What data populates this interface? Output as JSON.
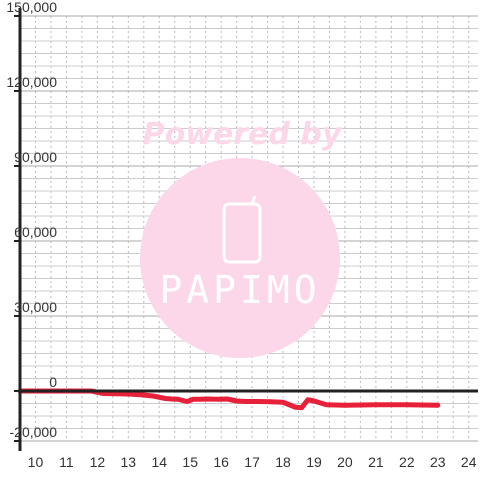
{
  "watermark": {
    "powered_by": "Powered by",
    "logo_text": "PAPIMO",
    "color": "#fcd7ea"
  },
  "colors": {
    "series": "#e8213a",
    "axis": "#222222",
    "grid": "#bbbbbb"
  },
  "chart_data": {
    "type": "line",
    "title": "",
    "xlabel": "",
    "ylabel": "",
    "xlim": [
      9.5,
      24.3
    ],
    "ylim": [
      -20000,
      150000
    ],
    "x_ticks": [
      10,
      11,
      12,
      13,
      14,
      15,
      16,
      17,
      18,
      19,
      20,
      21,
      22,
      23,
      24
    ],
    "x_tick_labels": [
      "10",
      "11",
      "12",
      "13",
      "14",
      "15",
      "16",
      "17",
      "18",
      "19",
      "20",
      "21",
      "22",
      "23",
      "24"
    ],
    "y_ticks": [
      150000,
      120000,
      90000,
      60000,
      30000,
      0,
      -20000
    ],
    "y_tick_labels": [
      "150,000",
      "120,000",
      "90,000",
      "60,000",
      "30,000",
      "0",
      "-20,000"
    ],
    "grid": true,
    "series": [
      {
        "x": [
          9.5,
          10.0,
          11.0,
          11.8,
          12.2,
          12.6,
          13.0,
          13.4,
          13.8,
          14.2,
          14.4,
          14.6,
          14.9,
          15.1,
          15.3,
          15.6,
          15.9,
          16.2,
          16.5,
          16.8,
          17.2,
          17.6,
          18.0,
          18.2,
          18.4,
          18.6,
          18.8,
          19.0,
          19.4,
          20.0,
          21.0,
          22.0,
          23.0
        ],
        "y": [
          0,
          0,
          0,
          0,
          -1000,
          -1100,
          -1200,
          -1500,
          -2000,
          -3000,
          -3200,
          -3300,
          -4200,
          -3300,
          -3300,
          -3200,
          -3300,
          -3200,
          -4000,
          -4200,
          -4200,
          -4300,
          -4500,
          -5500,
          -6500,
          -6700,
          -3500,
          -4000,
          -5500,
          -5700,
          -5500,
          -5500,
          -5700
        ]
      }
    ]
  }
}
